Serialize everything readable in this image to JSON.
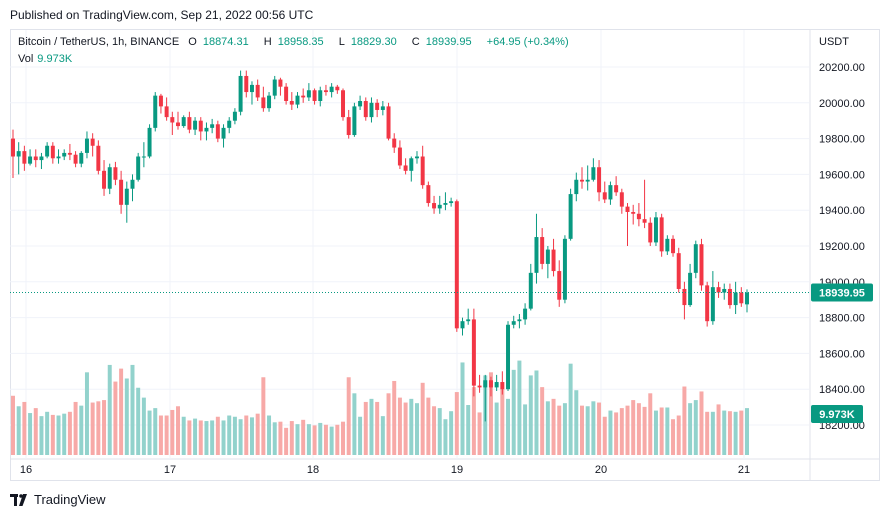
{
  "header": {
    "published": "Published on TradingView.com, Sep 21, 2022 00:56 UTC"
  },
  "legend": {
    "symbol": "Bitcoin / TetherUS, 1h, BINANCE",
    "open_label": "O",
    "open": "18874.31",
    "high_label": "H",
    "high": "18958.35",
    "low_label": "L",
    "low": "18829.30",
    "close_label": "C",
    "close": "18939.95",
    "change": "+64.95 (+0.34%)",
    "vol_label": "Vol",
    "vol_value": "9.973K"
  },
  "axis": {
    "currency": "USDT",
    "last_price": "18939.95",
    "last_volume": "9.973K"
  },
  "colors": {
    "up": "#089981",
    "down": "#f23645",
    "up_vol": "#92d2cc",
    "down_vol": "#f7a9a7",
    "grid": "#f0f3fa"
  },
  "footer": {
    "brand": "TradingView"
  },
  "chart_data": {
    "type": "candlestick",
    "y_ticks": [
      "20200.00",
      "20000.00",
      "19800.00",
      "19600.00",
      "19400.00",
      "19200.00",
      "19000.00",
      "18800.00",
      "18600.00",
      "18400.00",
      "18200.00"
    ],
    "x_ticks": [
      "16",
      "17",
      "18",
      "19",
      "20",
      "21"
    ],
    "ylim": [
      18050,
      20350
    ],
    "candles": [
      [
        19800,
        19850,
        19580,
        19700
      ],
      [
        19700,
        19780,
        19600,
        19730
      ],
      [
        19730,
        19760,
        19620,
        19660
      ],
      [
        19660,
        19740,
        19650,
        19700
      ],
      [
        19700,
        19740,
        19640,
        19680
      ],
      [
        19680,
        19720,
        19630,
        19700
      ],
      [
        19700,
        19780,
        19690,
        19760
      ],
      [
        19760,
        19780,
        19660,
        19690
      ],
      [
        19690,
        19740,
        19660,
        19700
      ],
      [
        19700,
        19740,
        19680,
        19720
      ],
      [
        19720,
        19770,
        19680,
        19710
      ],
      [
        19710,
        19730,
        19640,
        19660
      ],
      [
        19660,
        19730,
        19640,
        19720
      ],
      [
        19720,
        19840,
        19690,
        19800
      ],
      [
        19800,
        19830,
        19700,
        19760
      ],
      [
        19760,
        19790,
        19600,
        19620
      ],
      [
        19620,
        19680,
        19480,
        19520
      ],
      [
        19520,
        19660,
        19490,
        19640
      ],
      [
        19640,
        19670,
        19540,
        19570
      ],
      [
        19570,
        19620,
        19380,
        19430
      ],
      [
        19430,
        19560,
        19330,
        19520
      ],
      [
        19520,
        19600,
        19450,
        19570
      ],
      [
        19570,
        19720,
        19560,
        19700
      ],
      [
        19700,
        19780,
        19640,
        19700
      ],
      [
        19700,
        19880,
        19690,
        19860
      ],
      [
        19860,
        20060,
        19840,
        20040
      ],
      [
        20040,
        20050,
        19940,
        19980
      ],
      [
        19980,
        20030,
        19900,
        19920
      ],
      [
        19920,
        19950,
        19820,
        19890
      ],
      [
        19890,
        19950,
        19850,
        19870
      ],
      [
        19870,
        19930,
        19860,
        19920
      ],
      [
        19920,
        19950,
        19830,
        19850
      ],
      [
        19850,
        19920,
        19820,
        19900
      ],
      [
        19900,
        19920,
        19790,
        19840
      ],
      [
        19840,
        19890,
        19790,
        19860
      ],
      [
        19860,
        19910,
        19830,
        19880
      ],
      [
        19880,
        19900,
        19780,
        19800
      ],
      [
        19800,
        19880,
        19750,
        19860
      ],
      [
        19860,
        19920,
        19830,
        19900
      ],
      [
        19900,
        19970,
        19880,
        19950
      ],
      [
        19950,
        20180,
        19930,
        20150
      ],
      [
        20150,
        20180,
        20030,
        20060
      ],
      [
        20060,
        20120,
        19990,
        20100
      ],
      [
        20100,
        20130,
        20010,
        20030
      ],
      [
        20030,
        20090,
        19950,
        19970
      ],
      [
        19970,
        20060,
        19950,
        20040
      ],
      [
        20040,
        20150,
        20020,
        20130
      ],
      [
        20130,
        20140,
        20040,
        20090
      ],
      [
        20090,
        20110,
        19990,
        20010
      ],
      [
        20010,
        20060,
        19960,
        19990
      ],
      [
        19990,
        20060,
        19970,
        20040
      ],
      [
        20040,
        20080,
        20000,
        20030
      ],
      [
        20030,
        20110,
        20010,
        20070
      ],
      [
        20070,
        20080,
        19990,
        20010
      ],
      [
        20010,
        20090,
        19980,
        20070
      ],
      [
        20070,
        20100,
        20040,
        20060
      ],
      [
        20060,
        20110,
        20030,
        20090
      ],
      [
        20090,
        20100,
        20050,
        20070
      ],
      [
        20070,
        20080,
        19900,
        19920
      ],
      [
        19920,
        19960,
        19800,
        19820
      ],
      [
        19820,
        20000,
        19810,
        19980
      ],
      [
        19980,
        20040,
        19960,
        20010
      ],
      [
        20010,
        20030,
        19900,
        19920
      ],
      [
        19920,
        20030,
        19890,
        20000
      ],
      [
        20000,
        20020,
        19920,
        19960
      ],
      [
        19960,
        20010,
        19930,
        19980
      ],
      [
        19980,
        20000,
        19790,
        19800
      ],
      [
        19800,
        19830,
        19720,
        19750
      ],
      [
        19750,
        19790,
        19630,
        19650
      ],
      [
        19650,
        19690,
        19600,
        19620
      ],
      [
        19620,
        19700,
        19560,
        19690
      ],
      [
        19690,
        19730,
        19660,
        19700
      ],
      [
        19700,
        19760,
        19520,
        19540
      ],
      [
        19540,
        19560,
        19420,
        19440
      ],
      [
        19440,
        19480,
        19380,
        19410
      ],
      [
        19410,
        19480,
        19380,
        19430
      ],
      [
        19430,
        19500,
        19400,
        19440
      ],
      [
        19440,
        19470,
        19420,
        19450
      ],
      [
        19450,
        19460,
        18720,
        18740
      ],
      [
        18740,
        18800,
        18700,
        18780
      ],
      [
        18780,
        18850,
        18760,
        18790
      ],
      [
        18790,
        18850,
        18360,
        18420
      ],
      [
        18420,
        18480,
        18380,
        18410
      ],
      [
        18410,
        18480,
        18220,
        18450
      ],
      [
        18450,
        18470,
        18360,
        18410
      ],
      [
        18410,
        18480,
        18390,
        18440
      ],
      [
        18440,
        18500,
        18370,
        18400
      ],
      [
        18400,
        18780,
        18390,
        18760
      ],
      [
        18760,
        18810,
        18740,
        18780
      ],
      [
        18780,
        18820,
        18740,
        18790
      ],
      [
        18790,
        18880,
        18760,
        18850
      ],
      [
        18850,
        19100,
        18840,
        19050
      ],
      [
        19050,
        19380,
        18990,
        19250
      ],
      [
        19250,
        19300,
        19070,
        19100
      ],
      [
        19100,
        19200,
        19020,
        19180
      ],
      [
        19180,
        19240,
        19030,
        19060
      ],
      [
        19060,
        19120,
        18860,
        18900
      ],
      [
        18900,
        19260,
        18880,
        19240
      ],
      [
        19240,
        19520,
        19230,
        19490
      ],
      [
        19490,
        19610,
        19450,
        19570
      ],
      [
        19570,
        19640,
        19520,
        19560
      ],
      [
        19560,
        19650,
        19510,
        19570
      ],
      [
        19570,
        19690,
        19560,
        19640
      ],
      [
        19640,
        19680,
        19450,
        19500
      ],
      [
        19500,
        19560,
        19440,
        19460
      ],
      [
        19460,
        19560,
        19430,
        19540
      ],
      [
        19540,
        19590,
        19480,
        19500
      ],
      [
        19500,
        19520,
        19380,
        19420
      ],
      [
        19420,
        19440,
        19200,
        19390
      ],
      [
        19390,
        19430,
        19320,
        19380
      ],
      [
        19380,
        19440,
        19310,
        19350
      ],
      [
        19350,
        19570,
        19300,
        19330
      ],
      [
        19330,
        19360,
        19200,
        19220
      ],
      [
        19220,
        19390,
        19200,
        19360
      ],
      [
        19360,
        19380,
        19140,
        19170
      ],
      [
        19170,
        19260,
        19150,
        19240
      ],
      [
        19240,
        19260,
        19140,
        19160
      ],
      [
        19160,
        19190,
        18940,
        18960
      ],
      [
        18960,
        19000,
        18790,
        18870
      ],
      [
        18870,
        19100,
        18860,
        19050
      ],
      [
        19050,
        19230,
        19020,
        19210
      ],
      [
        19210,
        19240,
        18950,
        18980
      ],
      [
        18980,
        19000,
        18750,
        18780
      ],
      [
        18780,
        19060,
        18760,
        18970
      ],
      [
        18970,
        19000,
        18910,
        18940
      ],
      [
        18940,
        18990,
        18900,
        18960
      ],
      [
        18960,
        18990,
        18850,
        18870
      ],
      [
        18870,
        19000,
        18820,
        18940
      ],
      [
        18940,
        18970,
        18860,
        18880
      ],
      [
        18874,
        18958,
        18829,
        18940
      ]
    ],
    "volumes": [
      0.96,
      0.79,
      0.86,
      0.68,
      0.76,
      0.63,
      0.7,
      0.65,
      0.64,
      0.67,
      0.7,
      0.86,
      0.8,
      1.34,
      0.85,
      0.87,
      0.89,
      1.46,
      1.19,
      1.4,
      1.24,
      1.46,
      1.09,
      0.93,
      0.72,
      0.76,
      0.64,
      0.64,
      0.73,
      0.79,
      0.62,
      0.56,
      0.59,
      0.56,
      0.55,
      0.56,
      0.62,
      0.56,
      0.64,
      0.62,
      0.58,
      0.64,
      0.61,
      0.67,
      1.26,
      0.64,
      0.53,
      0.54,
      0.44,
      0.55,
      0.5,
      0.57,
      0.5,
      0.48,
      0.52,
      0.49,
      0.46,
      0.49,
      0.54,
      1.26,
      1.0,
      0.62,
      0.86,
      0.91,
      0.86,
      0.63,
      1.0,
      1.2,
      0.93,
      0.85,
      0.91,
      0.84,
      1.17,
      0.93,
      0.79,
      0.76,
      0.58,
      0.71,
      1.02,
      1.5,
      0.81,
      1.1,
      0.69,
      1.29,
      1.34,
      0.85,
      1.07,
      0.91,
      1.38,
      1.53,
      0.82,
      1.29,
      1.37,
      1.1,
      0.87,
      0.91,
      0.8,
      0.84,
      1.48,
      1.05,
      0.8,
      0.79,
      0.87,
      0.85,
      0.62,
      0.72,
      0.69,
      0.76,
      0.8,
      0.89,
      0.84,
      0.78,
      1.0,
      0.72,
      0.77,
      0.77,
      0.58,
      0.64,
      1.11,
      0.84,
      0.89,
      1.03,
      0.7,
      0.7,
      0.82,
      0.72,
      0.71,
      0.7,
      0.72,
      0.76
    ]
  }
}
